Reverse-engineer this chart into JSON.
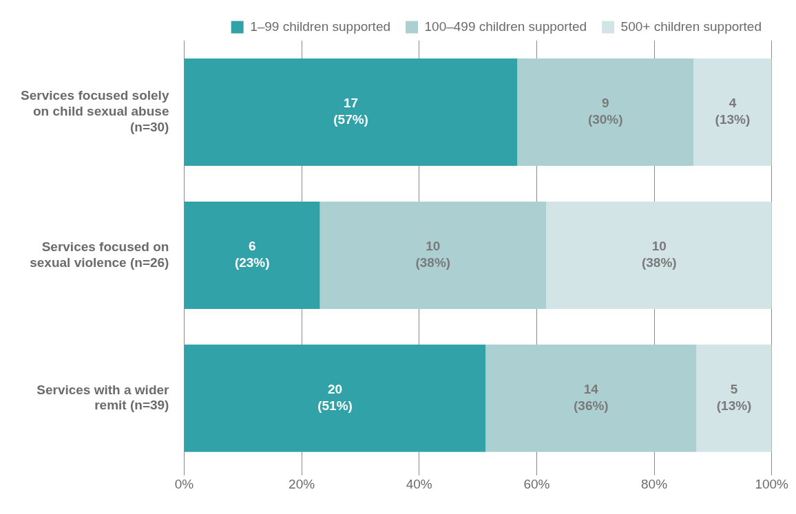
{
  "chart_data": {
    "type": "bar",
    "orientation": "horizontal",
    "stacked": true,
    "categories": [
      "Services focused solely on child sexual abuse (n=30)",
      "Services focused on sexual violence (n=26)",
      "Services with a wider remit (n=39)"
    ],
    "series": [
      {
        "name": "1–99 children supported",
        "color": "#30a2a8",
        "values": [
          56.7,
          23.1,
          51.3
        ],
        "value_labels": [
          "17\n(57%)",
          "6\n(23%)",
          "20\n(51%)"
        ]
      },
      {
        "name": "100–499 children supported",
        "color": "#acd0d2",
        "values": [
          30,
          38.5,
          35.9
        ],
        "value_labels": [
          "9\n(30%)",
          "10\n(38%)",
          "14\n(36%)"
        ]
      },
      {
        "name": "500+ children supported",
        "color": "#d2e4e6",
        "values": [
          13.3,
          38.5,
          12.8
        ],
        "value_labels": [
          "4\n(13%)",
          "10\n(38%)",
          "5\n(13%)"
        ]
      }
    ],
    "xlim": [
      0,
      100
    ],
    "xticks": [
      {
        "value": 0,
        "label": "0%"
      },
      {
        "value": 20,
        "label": "20%"
      },
      {
        "value": 40,
        "label": "40%"
      },
      {
        "value": 60,
        "label": "60%"
      },
      {
        "value": 80,
        "label": "80%"
      },
      {
        "value": 100,
        "label": "100%"
      }
    ],
    "grid": "x",
    "legend": "top"
  }
}
